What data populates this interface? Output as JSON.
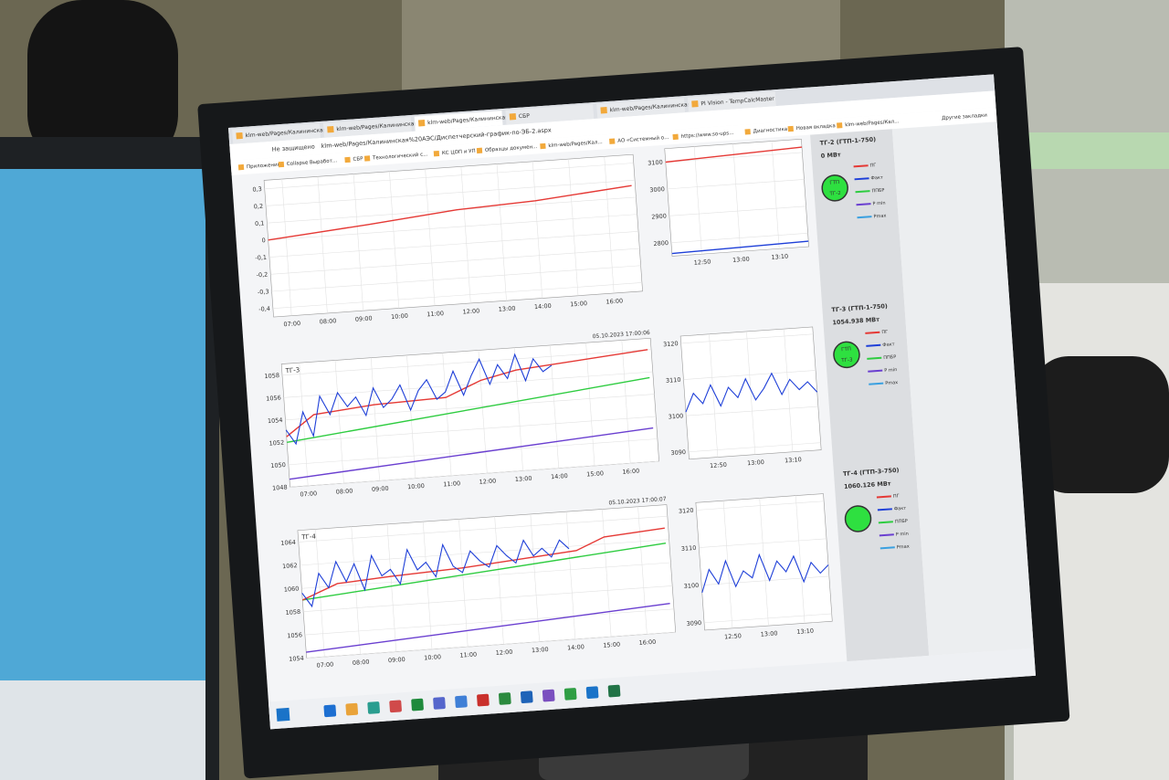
{
  "browser": {
    "tabs": [
      "klm-web/Pages/Калининская АЭ",
      "klm-web/Pages/Калининская АЭ",
      "klm-web/Pages/Калининская АЭ",
      "СБР",
      "klm-web/Pages/Калининская АЭ",
      "PI Vision - TempCalcMaster"
    ],
    "security": "Не защищено",
    "url": "klm-web/Pages/Калининская%20АЭС/Диспетчерский-график-по-ЭБ-2.aspx",
    "bookmarks": [
      "Приложения",
      "Collapse Выработ...",
      "СБР",
      "Технологический с...",
      "КС ЦОП и УП",
      "Образцы докумен...",
      "klm-web/Pages/Кал...",
      "АО «Системный о...",
      "https://www.so-ups...",
      "Диагностика",
      "Новая вкладка",
      "klm-web/Pages/Кал..."
    ],
    "other_bookmarks": "Другие закладки"
  },
  "chart_data": [
    {
      "type": "line",
      "xlim": [
        6.5,
        16.8
      ],
      "ylim": [
        -0.45,
        0.35
      ],
      "xticks": [
        {
          "value": 7,
          "label": "07:00"
        },
        {
          "value": 8,
          "label": "08:00"
        },
        {
          "value": 9,
          "label": "09:00"
        },
        {
          "value": 10,
          "label": "10:00"
        },
        {
          "value": 11,
          "label": "11:00"
        },
        {
          "value": 12,
          "label": "12:00"
        },
        {
          "value": 13,
          "label": "13:00"
        },
        {
          "value": 14,
          "label": "14:00"
        },
        {
          "value": 15,
          "label": "15:00"
        },
        {
          "value": 16,
          "label": "16:00"
        }
      ],
      "yticks": [
        {
          "value": -0.4,
          "label": "-0,4"
        },
        {
          "value": -0.3,
          "label": "-0,3"
        },
        {
          "value": -0.2,
          "label": "-0,2"
        },
        {
          "value": -0.1,
          "label": "-0,1"
        },
        0,
        {
          "value": 0.1,
          "label": "0,1"
        },
        {
          "value": 0.2,
          "label": "0,2"
        },
        {
          "value": 0.3,
          "label": "0,3"
        }
      ],
      "series": [
        {
          "color": "#e53935",
          "x": [
            6.5,
            9.3,
            11.8,
            14,
            16.7
          ],
          "values": [
            0,
            0.05,
            0.1,
            0.12,
            0.17
          ]
        }
      ]
    },
    {
      "type": "line",
      "title": "ТГ-3",
      "timestamp": "05.10.2023 17:00:06",
      "xlim": [
        6.5,
        16.8
      ],
      "ylim": [
        1048,
        1059
      ],
      "xticks": [
        {
          "value": 7,
          "label": "07:00"
        },
        {
          "value": 8,
          "label": "08:00"
        },
        {
          "value": 9,
          "label": "09:00"
        },
        {
          "value": 10,
          "label": "10:00"
        },
        {
          "value": 11,
          "label": "11:00"
        },
        {
          "value": 12,
          "label": "12:00"
        },
        {
          "value": 13,
          "label": "13:00"
        },
        {
          "value": 14,
          "label": "14:00"
        },
        {
          "value": 15,
          "label": "15:00"
        },
        {
          "value": 16,
          "label": "16:00"
        }
      ],
      "yticks": [
        1048,
        1050,
        1052,
        1054,
        1056,
        1058
      ],
      "series": [
        {
          "color": "#6a3fd0",
          "x": [
            6.5,
            16.7
          ],
          "values": [
            1048.7,
            1051
          ]
        },
        {
          "color": "#2ecc40",
          "x": [
            6.5,
            16.7
          ],
          "values": [
            1052,
            1055.5
          ]
        },
        {
          "color": "#e53935",
          "x": [
            6.5,
            7.3,
            9,
            11,
            12,
            13,
            16.7
          ],
          "values": [
            1052.5,
            1054.3,
            1054.8,
            1055,
            1056.3,
            1057,
            1058
          ]
        },
        {
          "color": "#1e3fd8",
          "x": [
            6.5,
            6.75,
            7,
            7.25,
            7.5,
            7.75,
            8,
            8.25,
            8.5,
            8.75,
            9,
            9.25,
            9.5,
            9.75,
            10,
            10.25,
            10.5,
            10.75,
            11,
            11.25,
            11.5,
            11.75,
            12,
            12.25,
            12.5,
            12.75,
            13,
            13.25,
            13.5,
            13.75,
            14
          ],
          "values": [
            1053.1,
            1051.8,
            1054.6,
            1052.4,
            1055.9,
            1054.2,
            1056.1,
            1054.8,
            1055.6,
            1053.9,
            1056.3,
            1054.5,
            1055.2,
            1056.4,
            1054.1,
            1055.8,
            1056.7,
            1054.9,
            1055.5,
            1057.3,
            1055.1,
            1056.8,
            1058.2,
            1055.9,
            1057.6,
            1056.3,
            1058.4,
            1056.0,
            1057.9,
            1056.7,
            1057.2
          ]
        }
      ]
    },
    {
      "type": "line",
      "title": "ТГ-4",
      "timestamp": "05.10.2023 17:00:07",
      "xlim": [
        6.5,
        16.8
      ],
      "ylim": [
        1054,
        1065
      ],
      "xticks": [
        {
          "value": 7,
          "label": "07:00"
        },
        {
          "value": 8,
          "label": "08:00"
        },
        {
          "value": 9,
          "label": "09:00"
        },
        {
          "value": 10,
          "label": "10:00"
        },
        {
          "value": 11,
          "label": "11:00"
        },
        {
          "value": 12,
          "label": "12:00"
        },
        {
          "value": 13,
          "label": "13:00"
        },
        {
          "value": 14,
          "label": "14:00"
        },
        {
          "value": 15,
          "label": "15:00"
        },
        {
          "value": 16,
          "label": "16:00"
        }
      ],
      "yticks": [
        1054,
        1056,
        1058,
        1060,
        1062,
        1064
      ],
      "series": [
        {
          "color": "#6a3fd0",
          "x": [
            6.5,
            16.7
          ],
          "values": [
            1054.5,
            1056.5
          ]
        },
        {
          "color": "#2ecc40",
          "x": [
            6.5,
            16.7
          ],
          "values": [
            1059,
            1061.7
          ]
        },
        {
          "color": "#e53935",
          "x": [
            6.5,
            7.5,
            9,
            11,
            13,
            14.2,
            15,
            16.7
          ],
          "values": [
            1059,
            1060.2,
            1060.5,
            1060.8,
            1061.3,
            1061.6,
            1062.6,
            1063
          ]
        },
        {
          "color": "#1e3fd8",
          "x": [
            6.5,
            6.75,
            7,
            7.25,
            7.5,
            7.75,
            8,
            8.25,
            8.5,
            8.75,
            9,
            9.25,
            9.5,
            9.75,
            10,
            10.25,
            10.5,
            10.75,
            11,
            11.25,
            11.5,
            11.75,
            12,
            12.25,
            12.5,
            12.75,
            13,
            13.25,
            13.5,
            13.75,
            14
          ],
          "values": [
            1059.6,
            1058.4,
            1061.2,
            1059.9,
            1062.1,
            1060.3,
            1061.8,
            1059.5,
            1062.4,
            1060.6,
            1061.1,
            1059.8,
            1062.7,
            1060.9,
            1061.5,
            1060.2,
            1062.9,
            1061.0,
            1060.4,
            1062.2,
            1061.3,
            1060.7,
            1062.5,
            1061.6,
            1060.9,
            1062.8,
            1061.4,
            1062.0,
            1061.2,
            1062.6,
            1061.8
          ]
        }
      ]
    },
    {
      "type": "line",
      "xlim": [
        12.7,
        13.3
      ],
      "ylim": [
        2750,
        3150
      ],
      "xticks": [
        {
          "value": 12.83,
          "label": "12:50"
        },
        {
          "value": 13,
          "label": "13:00"
        },
        {
          "value": 13.17,
          "label": "13:10"
        }
      ],
      "yticks": [
        2800,
        2900,
        3000,
        3100
      ],
      "series": [
        {
          "color": "#e53935",
          "x": [
            12.7,
            13.3
          ],
          "values": [
            3100,
            3120
          ]
        },
        {
          "color": "#1e3fd8",
          "x": [
            12.7,
            13.3
          ],
          "values": [
            2760,
            2770
          ]
        }
      ]
    },
    {
      "type": "line",
      "xlim": [
        12.7,
        13.3
      ],
      "ylim": [
        3088,
        3122
      ],
      "xticks": [
        {
          "value": 12.83,
          "label": "12:50"
        },
        {
          "value": 13,
          "label": "13:00"
        },
        {
          "value": 13.17,
          "label": "13:10"
        }
      ],
      "yticks": [
        3090,
        3100,
        3110,
        3120
      ],
      "series": [
        {
          "color": "#1e3fd8",
          "x": [
            12.7,
            12.74,
            12.78,
            12.82,
            12.86,
            12.9,
            12.94,
            12.98,
            13.02,
            13.06,
            13.1,
            13.14,
            13.18,
            13.22,
            13.26,
            13.3
          ],
          "values": [
            3101,
            3106,
            3103,
            3108,
            3102,
            3107,
            3104,
            3109,
            3103,
            3106,
            3110,
            3104,
            3108,
            3105,
            3107,
            3104
          ]
        }
      ]
    },
    {
      "type": "line",
      "xlim": [
        12.7,
        13.3
      ],
      "ylim": [
        3088,
        3122
      ],
      "xticks": [
        {
          "value": 12.83,
          "label": "12:50"
        },
        {
          "value": 13,
          "label": "13:00"
        },
        {
          "value": 13.17,
          "label": "13:10"
        }
      ],
      "yticks": [
        3090,
        3100,
        3110,
        3120
      ],
      "series": [
        {
          "color": "#1e3fd8",
          "x": [
            12.7,
            12.74,
            12.78,
            12.82,
            12.86,
            12.9,
            12.94,
            12.98,
            13.02,
            13.06,
            13.1,
            13.14,
            13.18,
            13.22,
            13.26,
            13.3
          ],
          "values": [
            3098,
            3104,
            3100,
            3106,
            3099,
            3103,
            3101,
            3107,
            3100,
            3105,
            3102,
            3106,
            3099,
            3104,
            3101,
            3103
          ]
        }
      ]
    }
  ],
  "panels": [
    {
      "title": "ТГ-2 (ГТП-1-750)",
      "power": "0 МВт",
      "indicator": [
        "ГТП",
        "ТГ-2"
      ],
      "legend": [
        {
          "name": "ПГ",
          "color": "#e53935"
        },
        {
          "name": "Факт",
          "color": "#1e3fd8"
        },
        {
          "name": "ППБР",
          "color": "#2ecc40"
        },
        {
          "name": "P min",
          "color": "#6a3fd0"
        },
        {
          "name": "Pmax",
          "color": "#3aa0e0"
        }
      ]
    },
    {
      "title": "ТГ-3 (ГТП-1-750)",
      "power": "1054.938 МВт",
      "indicator": [
        "ГТП",
        "ТГ-3"
      ],
      "legend": [
        {
          "name": "ПГ",
          "color": "#e53935"
        },
        {
          "name": "Факт",
          "color": "#1e3fd8"
        },
        {
          "name": "ППБР",
          "color": "#2ecc40"
        },
        {
          "name": "P min",
          "color": "#6a3fd0"
        },
        {
          "name": "Pmax",
          "color": "#3aa0e0"
        }
      ]
    },
    {
      "title": "ТГ-4 (ГТП-3-750)",
      "power": "1060.126 МВт",
      "indicator": [],
      "legend": [
        {
          "name": "ПГ",
          "color": "#e53935"
        },
        {
          "name": "Факт",
          "color": "#1e3fd8"
        },
        {
          "name": "ППБР",
          "color": "#2ecc40"
        },
        {
          "name": "P min",
          "color": "#6a3fd0"
        },
        {
          "name": "Pmax",
          "color": "#3aa0e0"
        }
      ]
    }
  ]
}
